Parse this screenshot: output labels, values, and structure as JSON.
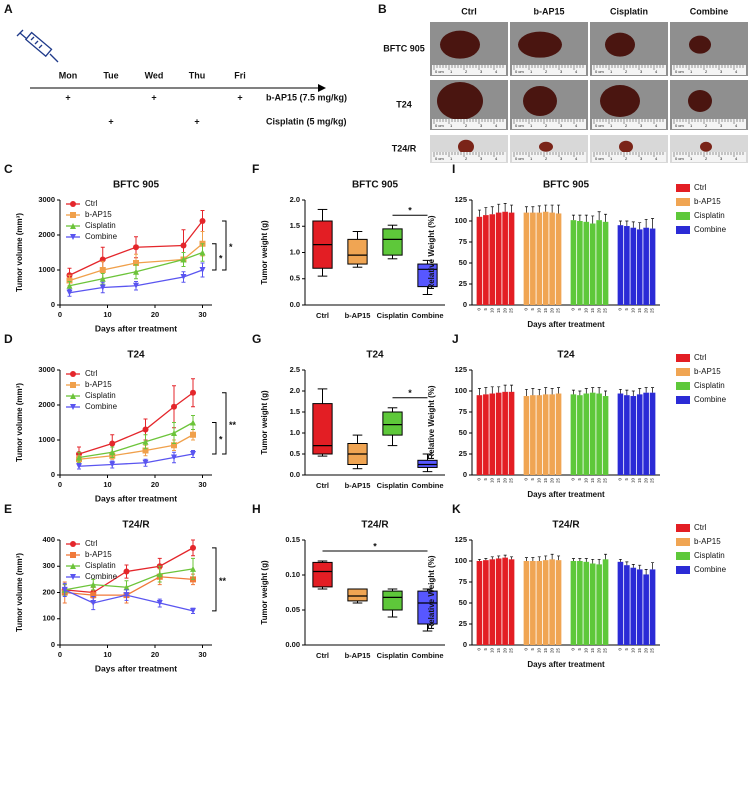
{
  "schedule": {
    "panel": "A",
    "days": [
      "Mon",
      "Tue",
      "Wed",
      "Thu",
      "Fri"
    ],
    "drugs": [
      {
        "name": "b-AP15 (7.5 mg/kg)",
        "sign": "+",
        "days": [
          "Mon",
          "Wed",
          "Fri"
        ]
      },
      {
        "name": "Cisplatin (5 mg/kg)",
        "sign": "+",
        "days": [
          "Tue",
          "Thu"
        ]
      }
    ]
  },
  "photos": {
    "panel": "B",
    "columns": [
      "Ctrl",
      "b-AP15",
      "Cisplatin",
      "Combine"
    ],
    "rows": [
      "BFTC 905",
      "T24",
      "T24/R"
    ],
    "ruler": [
      "0 cm",
      "1",
      "2",
      "3",
      "4"
    ]
  },
  "chart_data": [
    {
      "panel": "C",
      "type": "line",
      "title": "BFTC 905",
      "xlabel": "Days after treatment",
      "ylabel": "Tumor volume (mm³)",
      "x": [
        2,
        9,
        16,
        26,
        30
      ],
      "xlim": [
        0,
        32
      ],
      "xticks": [
        0,
        10,
        20,
        30
      ],
      "ylim": [
        0,
        3000
      ],
      "yticks": [
        0,
        1000,
        2000,
        3000
      ],
      "series": [
        {
          "name": "Ctrl",
          "color": "#e4262b",
          "marker": "circle",
          "values": [
            850,
            1300,
            1650,
            1700,
            2400
          ],
          "errors": [
            200,
            350,
            300,
            450,
            300
          ]
        },
        {
          "name": "b-AP15",
          "color": "#f0a04b",
          "marker": "square",
          "values": [
            700,
            1000,
            1200,
            1300,
            1750
          ],
          "errors": [
            150,
            250,
            250,
            200,
            350
          ]
        },
        {
          "name": "Cisplatin",
          "color": "#6cc43a",
          "marker": "triangle",
          "values": [
            550,
            750,
            950,
            1300,
            1500
          ],
          "errors": [
            120,
            150,
            200,
            200,
            250
          ]
        },
        {
          "name": "Combine",
          "color": "#5a55f0",
          "marker": "down",
          "values": [
            350,
            500,
            550,
            800,
            1000
          ],
          "errors": [
            100,
            150,
            120,
            150,
            200
          ]
        }
      ],
      "annotations": [
        "*",
        "*"
      ]
    },
    {
      "panel": "D",
      "type": "line",
      "title": "T24",
      "xlabel": "Days after treatment",
      "ylabel": "Tumor volume (mm³)",
      "x": [
        4,
        11,
        18,
        24,
        28
      ],
      "xlim": [
        0,
        32
      ],
      "xticks": [
        0,
        10,
        20,
        30
      ],
      "ylim": [
        0,
        3000
      ],
      "yticks": [
        0,
        1000,
        2000,
        3000
      ],
      "series": [
        {
          "name": "Ctrl",
          "color": "#e4262b",
          "marker": "circle",
          "values": [
            600,
            900,
            1300,
            1950,
            2350
          ],
          "errors": [
            200,
            250,
            300,
            600,
            400
          ]
        },
        {
          "name": "b-AP15",
          "color": "#f0a04b",
          "marker": "square",
          "values": [
            450,
            550,
            700,
            850,
            1150
          ],
          "errors": [
            100,
            100,
            150,
            150,
            150
          ]
        },
        {
          "name": "Cisplatin",
          "color": "#6cc43a",
          "marker": "triangle",
          "values": [
            500,
            650,
            950,
            1200,
            1500
          ],
          "errors": [
            150,
            150,
            200,
            300,
            200
          ]
        },
        {
          "name": "Combine",
          "color": "#5a55f0",
          "marker": "down",
          "values": [
            250,
            300,
            350,
            500,
            600
          ],
          "errors": [
            80,
            100,
            100,
            150,
            100
          ]
        }
      ],
      "annotations": [
        "**",
        "*"
      ]
    },
    {
      "panel": "E",
      "type": "line",
      "title": "T24/R",
      "xlabel": "Days after treatment",
      "ylabel": "Tumor volume (mm³)",
      "x": [
        1,
        7,
        14,
        21,
        28
      ],
      "xlim": [
        0,
        32
      ],
      "xticks": [
        0,
        10,
        20,
        30
      ],
      "ylim": [
        0,
        400
      ],
      "yticks": [
        0,
        100,
        200,
        300,
        400
      ],
      "series": [
        {
          "name": "Ctrl",
          "color": "#e4262b",
          "marker": "circle",
          "values": [
            210,
            200,
            280,
            300,
            370
          ],
          "errors": [
            20,
            20,
            25,
            30,
            30
          ]
        },
        {
          "name": "b-AP15",
          "color": "#f07a3b",
          "marker": "square",
          "values": [
            200,
            190,
            190,
            260,
            250
          ],
          "errors": [
            40,
            30,
            30,
            30,
            20
          ]
        },
        {
          "name": "Cisplatin",
          "color": "#6cc43a",
          "marker": "triangle",
          "values": [
            210,
            230,
            220,
            270,
            290
          ],
          "errors": [
            20,
            20,
            25,
            30,
            40
          ]
        },
        {
          "name": "Combine",
          "color": "#5a55f0",
          "marker": "down",
          "values": [
            210,
            160,
            190,
            160,
            130
          ],
          "errors": [
            25,
            25,
            20,
            15,
            10
          ]
        }
      ],
      "annotations": [
        "**"
      ]
    },
    {
      "panel": "F",
      "type": "box",
      "title": "BFTC 905",
      "ylabel": "Tumor weight (g)",
      "categories": [
        "Ctrl",
        "b-AP15",
        "Cisplatin",
        "Combine"
      ],
      "colors": [
        "#e31e24",
        "#f0a553",
        "#5ec83a",
        "#5757ff"
      ],
      "ylim": [
        0,
        2
      ],
      "yticks": [
        {
          "value": 0,
          "label": "0.0"
        },
        0.5,
        {
          "value": 1,
          "label": "1.0"
        },
        1.5,
        {
          "value": 2,
          "label": "2.0"
        }
      ],
      "values": [
        [
          0.55,
          0.7,
          1.15,
          1.6,
          1.82
        ],
        [
          0.72,
          0.78,
          0.95,
          1.25,
          1.4
        ],
        [
          0.88,
          0.95,
          1.25,
          1.45,
          1.52
        ],
        [
          0.2,
          0.35,
          0.68,
          0.78,
          0.85
        ]
      ],
      "annotations": [
        "*"
      ]
    },
    {
      "panel": "G",
      "type": "box",
      "title": "T24",
      "ylabel": "Tumor weight (g)",
      "categories": [
        "Ctrl",
        "b-AP15",
        "Cisplatin",
        "Combine"
      ],
      "colors": [
        "#e31e24",
        "#f0a553",
        "#5ec83a",
        "#5757ff"
      ],
      "ylim": [
        0,
        2.5
      ],
      "yticks": [
        {
          "value": 0,
          "label": "0.0"
        },
        0.5,
        {
          "value": 1,
          "label": "1.0"
        },
        1.5,
        {
          "value": 2,
          "label": "2.0"
        },
        2.5
      ],
      "values": [
        [
          0.45,
          0.5,
          0.7,
          1.7,
          2.05
        ],
        [
          0.15,
          0.25,
          0.5,
          0.75,
          0.95
        ],
        [
          0.7,
          0.95,
          1.2,
          1.5,
          1.6
        ],
        [
          0.08,
          0.18,
          0.25,
          0.35,
          0.5
        ]
      ],
      "annotations": [
        "*"
      ]
    },
    {
      "panel": "H",
      "type": "box",
      "title": "T24/R",
      "ylabel": "Tumor weight (g)",
      "categories": [
        "Ctrl",
        "b-AP15",
        "Cisplatin",
        "Combine"
      ],
      "colors": [
        "#e31e24",
        "#f0a553",
        "#5ec83a",
        "#5757ff"
      ],
      "ylim": [
        0,
        0.15
      ],
      "yticks": [
        {
          "value": 0,
          "label": "0.00"
        },
        0.05,
        {
          "value": 0.1,
          "label": "0.10"
        },
        0.15
      ],
      "values": [
        [
          0.08,
          0.083,
          0.105,
          0.118,
          0.12
        ],
        [
          0.06,
          0.063,
          0.07,
          0.08,
          0.08
        ],
        [
          0.04,
          0.05,
          0.068,
          0.077,
          0.08
        ],
        [
          0.02,
          0.03,
          0.06,
          0.077,
          0.08
        ]
      ],
      "annotations": [
        "*"
      ]
    },
    {
      "panel": "I",
      "type": "groupbar",
      "title": "BFTC 905",
      "xlabel": "Days after treatment",
      "ylabel": "Relative Weight (%)",
      "categories": [
        "0",
        "5",
        "10",
        "15",
        "20",
        "25"
      ],
      "ylim": [
        0,
        125
      ],
      "yticks": [
        0,
        25,
        50,
        75,
        100,
        125
      ],
      "series": [
        {
          "name": "Ctrl",
          "color": "#e31e24",
          "values": [
            105,
            107,
            108,
            110,
            111,
            110
          ],
          "errors": [
            8,
            9,
            9,
            10,
            10,
            9
          ]
        },
        {
          "name": "b-AP15",
          "color": "#f0a553",
          "values": [
            110,
            110,
            110,
            111,
            110,
            109
          ],
          "errors": [
            7,
            7,
            8,
            8,
            9,
            10
          ]
        },
        {
          "name": "Cisplatin",
          "color": "#5ec83a",
          "values": [
            101,
            100,
            99,
            97,
            101,
            99
          ],
          "errors": [
            6,
            7,
            8,
            9,
            10,
            9
          ]
        },
        {
          "name": "Combine",
          "color": "#2b2bd6",
          "values": [
            95,
            94,
            92,
            90,
            92,
            91
          ],
          "errors": [
            5,
            6,
            7,
            8,
            10,
            12
          ]
        }
      ]
    },
    {
      "panel": "J",
      "type": "groupbar",
      "title": "T24",
      "xlabel": "Days after treatment",
      "ylabel": "Relative Weight (%)",
      "categories": [
        "0",
        "5",
        "10",
        "15",
        "20",
        "25"
      ],
      "ylim": [
        0,
        125
      ],
      "yticks": [
        0,
        25,
        50,
        75,
        100,
        125
      ],
      "series": [
        {
          "name": "Ctrl",
          "color": "#e31e24",
          "values": [
            95,
            96,
            97,
            98,
            99,
            99
          ],
          "errors": [
            8,
            8,
            8,
            7,
            8,
            8
          ]
        },
        {
          "name": "b-AP15",
          "color": "#f0a553",
          "values": [
            94,
            95,
            95,
            96,
            96,
            97
          ],
          "errors": [
            8,
            8,
            7,
            8,
            7,
            7
          ]
        },
        {
          "name": "Cisplatin",
          "color": "#5ec83a",
          "values": [
            96,
            95,
            97,
            98,
            97,
            94
          ],
          "errors": [
            5,
            5,
            6,
            6,
            7,
            6
          ]
        },
        {
          "name": "Combine",
          "color": "#2b2bd6",
          "values": [
            97,
            95,
            94,
            96,
            98,
            98
          ],
          "errors": [
            5,
            6,
            6,
            7,
            6,
            6
          ]
        }
      ]
    },
    {
      "panel": "K",
      "type": "groupbar",
      "title": "T24/R",
      "xlabel": "Days after treatment",
      "ylabel": "Relative Weight (%)",
      "categories": [
        "0",
        "5",
        "10",
        "15",
        "20",
        "25"
      ],
      "ylim": [
        0,
        125
      ],
      "yticks": [
        0,
        25,
        50,
        75,
        100,
        125
      ],
      "series": [
        {
          "name": "Ctrl",
          "color": "#e31e24",
          "values": [
            100,
            101,
            102,
            103,
            104,
            102
          ],
          "errors": [
            2,
            2,
            3,
            3,
            3,
            3
          ]
        },
        {
          "name": "b-AP15",
          "color": "#f0a553",
          "values": [
            100,
            100,
            100,
            101,
            102,
            101
          ],
          "errors": [
            4,
            4,
            5,
            5,
            6,
            5
          ]
        },
        {
          "name": "Cisplatin",
          "color": "#5ec83a",
          "values": [
            100,
            100,
            99,
            97,
            96,
            102
          ],
          "errors": [
            3,
            3,
            4,
            5,
            6,
            6
          ]
        },
        {
          "name": "Combine",
          "color": "#2b2bd6",
          "values": [
            99,
            95,
            92,
            90,
            84,
            90
          ],
          "errors": [
            3,
            4,
            4,
            5,
            6,
            8
          ]
        }
      ]
    }
  ]
}
